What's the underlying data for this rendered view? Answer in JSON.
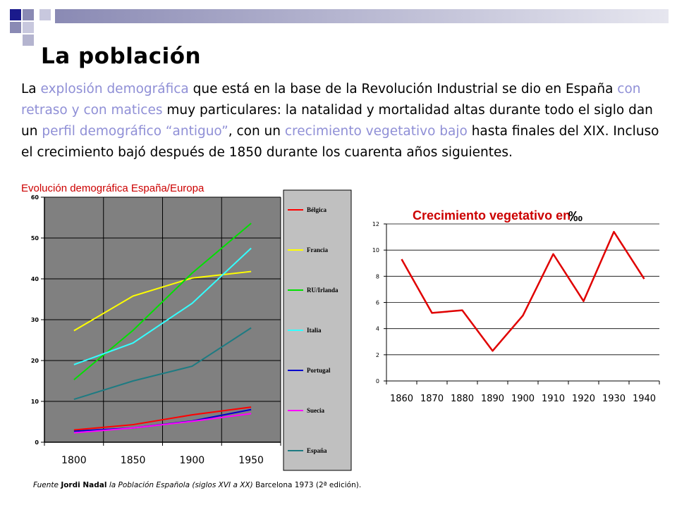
{
  "slide": {
    "title": "La población",
    "intro_parts": [
      {
        "text": "La ",
        "hl": false
      },
      {
        "text": "explosión demográfica",
        "hl": true
      },
      {
        "text": " que está en la base de la Revolución Industrial se dio en España ",
        "hl": false
      },
      {
        "text": "con retraso y con matices",
        "hl": true
      },
      {
        "text": " muy particulares: la natalidad y mortalidad altas durante todo el siglo dan un ",
        "hl": false
      },
      {
        "text": "perfil demográfico “antiguo”",
        "hl": true
      },
      {
        "text": ", con un ",
        "hl": false
      },
      {
        "text": "crecimiento vegetativo bajo",
        "hl": true
      },
      {
        "text": " hasta finales del XIX. Incluso el crecimiento bajó después de 1850 durante los cuarenta años siguientes.",
        "hl": false
      }
    ],
    "source": {
      "prefix": "Fuente",
      "author": "Jordi Nadal",
      "work": "la Población Española (siglos XVI a XX)",
      "details": "Barcelona 1973 (2ª edición)."
    }
  },
  "chart_data": [
    {
      "type": "line",
      "title": "Evolución demográfica España/Europa",
      "categories": [
        "1800",
        "1850",
        "1900",
        "1950"
      ],
      "ylim": [
        0,
        60
      ],
      "yticks": [
        "0",
        "10",
        "20",
        "30",
        "40",
        "50",
        "60"
      ],
      "grid": true,
      "plot_bg": "#808080",
      "legend_position": "right",
      "series": [
        {
          "name": "Bélgica",
          "color": "#ff0000",
          "values": [
            3,
            4.3,
            6.7,
            8.6
          ]
        },
        {
          "name": "Francia",
          "color": "#ffff00",
          "values": [
            27.3,
            35.8,
            40.2,
            41.8
          ]
        },
        {
          "name": "RU/Irlanda",
          "color": "#00e000",
          "values": [
            15.3,
            27.4,
            41.4,
            53.6
          ]
        },
        {
          "name": "Italia",
          "color": "#33ffff",
          "values": [
            19,
            24.3,
            34,
            47.5
          ]
        },
        {
          "name": "Portugal",
          "color": "#0000cc",
          "values": [
            2.7,
            3.5,
            5.2,
            8
          ]
        },
        {
          "name": "Suecia",
          "color": "#ff00ff",
          "values": [
            2.3,
            3.5,
            5.1,
            7
          ]
        },
        {
          "name": "España",
          "color": "#1e7b82",
          "values": [
            10.5,
            15,
            18.6,
            28
          ]
        }
      ]
    },
    {
      "type": "line",
      "title": "Crecimiento vegetativo en",
      "title_unit": "‰",
      "categories": [
        "1860",
        "1870",
        "1880",
        "1890",
        "1900",
        "1910",
        "1920",
        "1930",
        "1940"
      ],
      "ylim": [
        0,
        12
      ],
      "yticks": [
        "0",
        "2",
        "4",
        "6",
        "8",
        "10",
        "12"
      ],
      "grid": true,
      "plot_bg": "#ffffff",
      "series": [
        {
          "color": "#e00000",
          "values": [
            9.3,
            5.2,
            5.4,
            2.3,
            5,
            9.7,
            6.1,
            11.4,
            7.8
          ]
        }
      ]
    }
  ]
}
